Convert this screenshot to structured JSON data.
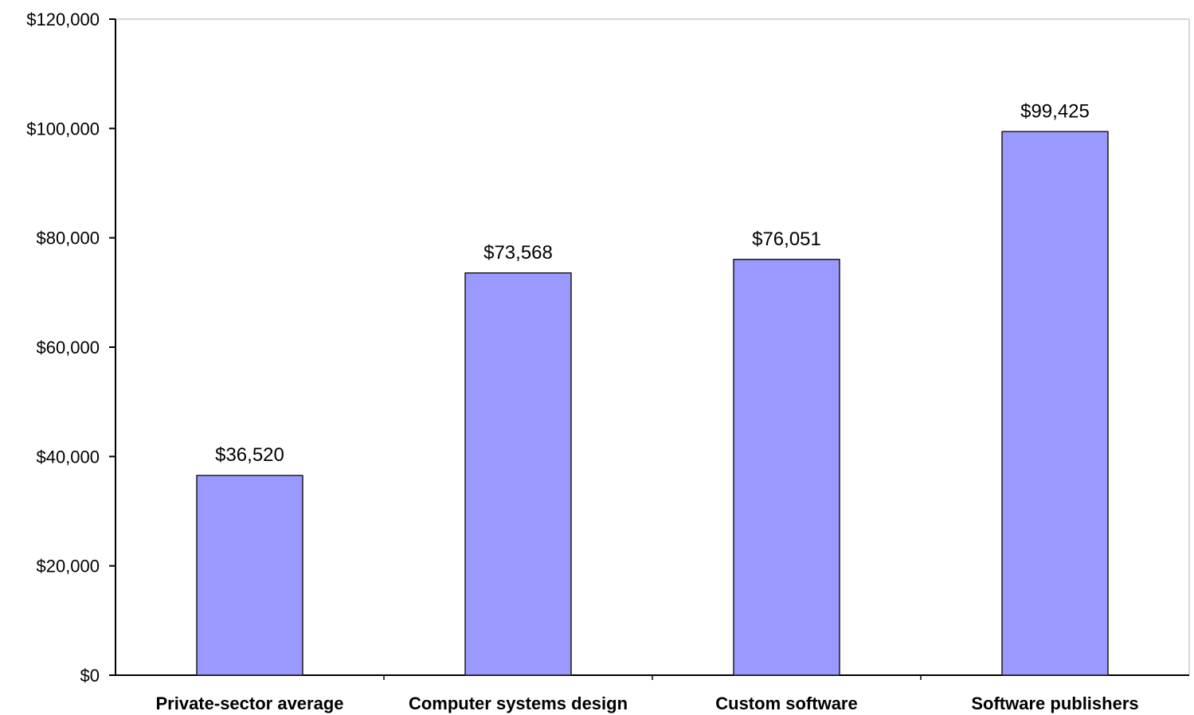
{
  "chart_data": {
    "type": "bar",
    "title": "",
    "xlabel": "",
    "ylabel": "",
    "categories": [
      "Private-sector average",
      "Computer systems design",
      "Custom software",
      "Software publishers"
    ],
    "values": [
      36520,
      73568,
      76051,
      99425
    ],
    "data_labels": [
      "$36,520",
      "$73,568",
      "$76,051",
      "$99,425"
    ],
    "ylim": [
      0,
      120000
    ],
    "yticks": [
      0,
      20000,
      40000,
      60000,
      80000,
      100000,
      120000
    ],
    "ytick_labels": [
      "$0",
      "$20,000",
      "$40,000",
      "$60,000",
      "$80,000",
      "$100,000",
      "$120,000"
    ],
    "grid": false,
    "legend": "none",
    "bar_color": "#9999ff",
    "bar_edge_color": "#1a1a1a",
    "axis_color": "#000000"
  }
}
